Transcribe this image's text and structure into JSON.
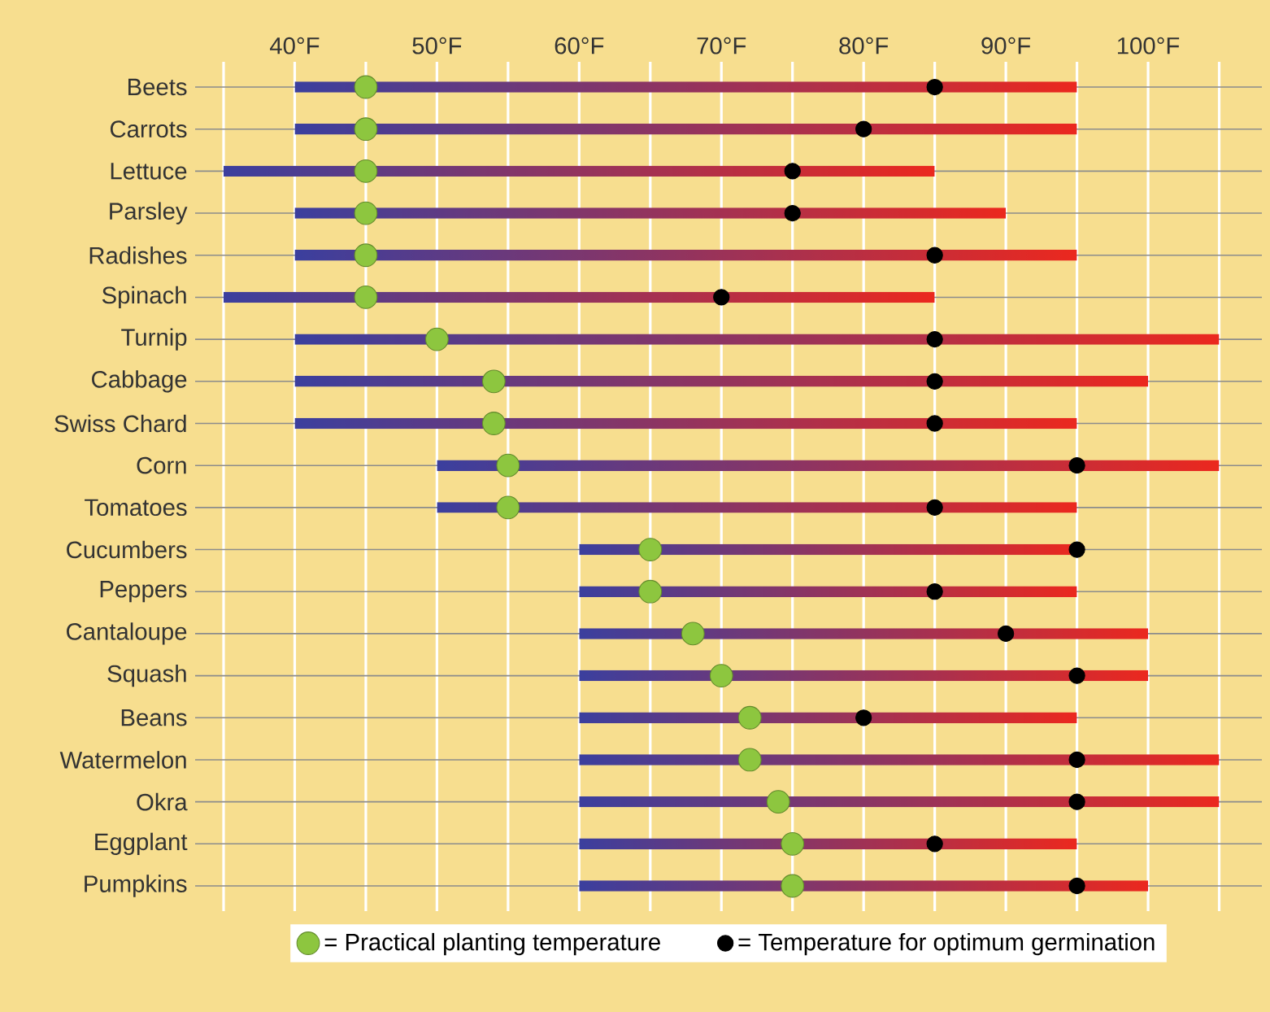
{
  "chart_data": {
    "type": "bar",
    "orientation": "horizontal",
    "grid": true,
    "legend": "bottom",
    "marker": "circle",
    "categories": [
      "Beets",
      "Carrots",
      "Lettuce",
      "Parsley",
      "Radishes",
      "Spinach",
      "Turnip",
      "Cabbage",
      "Swiss Chard",
      "Corn",
      "Tomatoes",
      "Cucumbers",
      "Peppers",
      "Cantaloupe",
      "Squash",
      "Beans",
      "Watermelon",
      "Okra",
      "Eggplant",
      "Pumpkins"
    ],
    "xlim": [
      33,
      108
    ],
    "xticks": [
      {
        "value": 35,
        "label": null
      },
      {
        "value": 40,
        "label": "40°F"
      },
      {
        "value": 45,
        "label": null
      },
      {
        "value": 50,
        "label": "50°F"
      },
      {
        "value": 55,
        "label": null
      },
      {
        "value": 60,
        "label": "60°F"
      },
      {
        "value": 65,
        "label": null
      },
      {
        "value": 70,
        "label": "70°F"
      },
      {
        "value": 75,
        "label": null
      },
      {
        "value": 80,
        "label": "80°F"
      },
      {
        "value": 85,
        "label": null
      },
      {
        "value": 90,
        "label": "90°F"
      },
      {
        "value": 95,
        "label": null
      },
      {
        "value": 100,
        "label": "100°F"
      },
      {
        "value": 105,
        "label": null
      }
    ],
    "series": [
      {
        "color": "#3b3f9e",
        "base": [
          40,
          40,
          35,
          40,
          40,
          35,
          40,
          40,
          40,
          50,
          50,
          60,
          60,
          60,
          60,
          60,
          60,
          60,
          60,
          60
        ],
        "values": [
          55,
          55,
          50,
          50,
          55,
          50,
          65,
          60,
          55,
          55,
          45,
          35,
          35,
          40,
          40,
          35,
          45,
          45,
          35,
          40
        ]
      },
      {
        "type": "scatter",
        "name": "= Practical planting temperature",
        "color": "#8dc63f",
        "values": [
          45,
          45,
          45,
          45,
          45,
          45,
          50,
          54,
          54,
          55,
          55,
          65,
          65,
          68,
          70,
          72,
          72,
          74,
          75,
          75
        ]
      },
      {
        "type": "scatter",
        "name": "= Temperature for optimum germination",
        "color": "#000000",
        "values": [
          85,
          80,
          75,
          75,
          85,
          70,
          85,
          85,
          85,
          95,
          85,
          95,
          85,
          90,
          95,
          80,
          95,
          95,
          85,
          95
        ]
      }
    ]
  }
}
